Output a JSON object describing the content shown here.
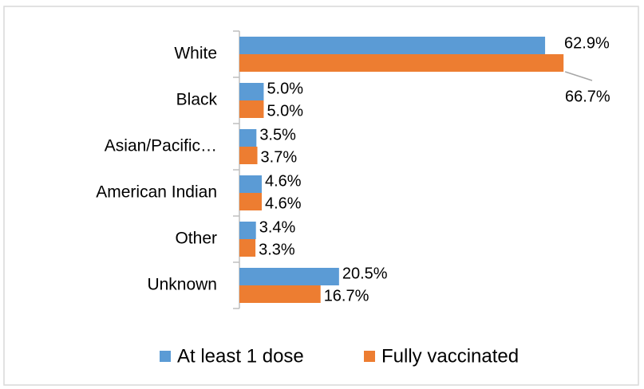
{
  "chart_data": {
    "type": "hbar",
    "categories": [
      "White",
      "Black",
      "Asian/Pacific…",
      "American Indian",
      "Other",
      "Unknown"
    ],
    "series": [
      {
        "name": "At least 1 dose",
        "color": "#5b9bd5",
        "values": [
          62.9,
          5.0,
          3.5,
          4.6,
          3.4,
          20.5
        ],
        "value_labels": [
          "62.9%",
          "5.0%",
          "3.5%",
          "4.6%",
          "3.4%",
          "20.5%"
        ]
      },
      {
        "name": "Fully vaccinated",
        "color": "#ed7d31",
        "values": [
          66.7,
          5.0,
          3.7,
          4.6,
          3.3,
          16.7
        ],
        "value_labels": [
          "66.7%",
          "5.0%",
          "3.7%",
          "4.6%",
          "3.3%",
          "16.7%"
        ]
      }
    ],
    "legend": "bottom"
  }
}
